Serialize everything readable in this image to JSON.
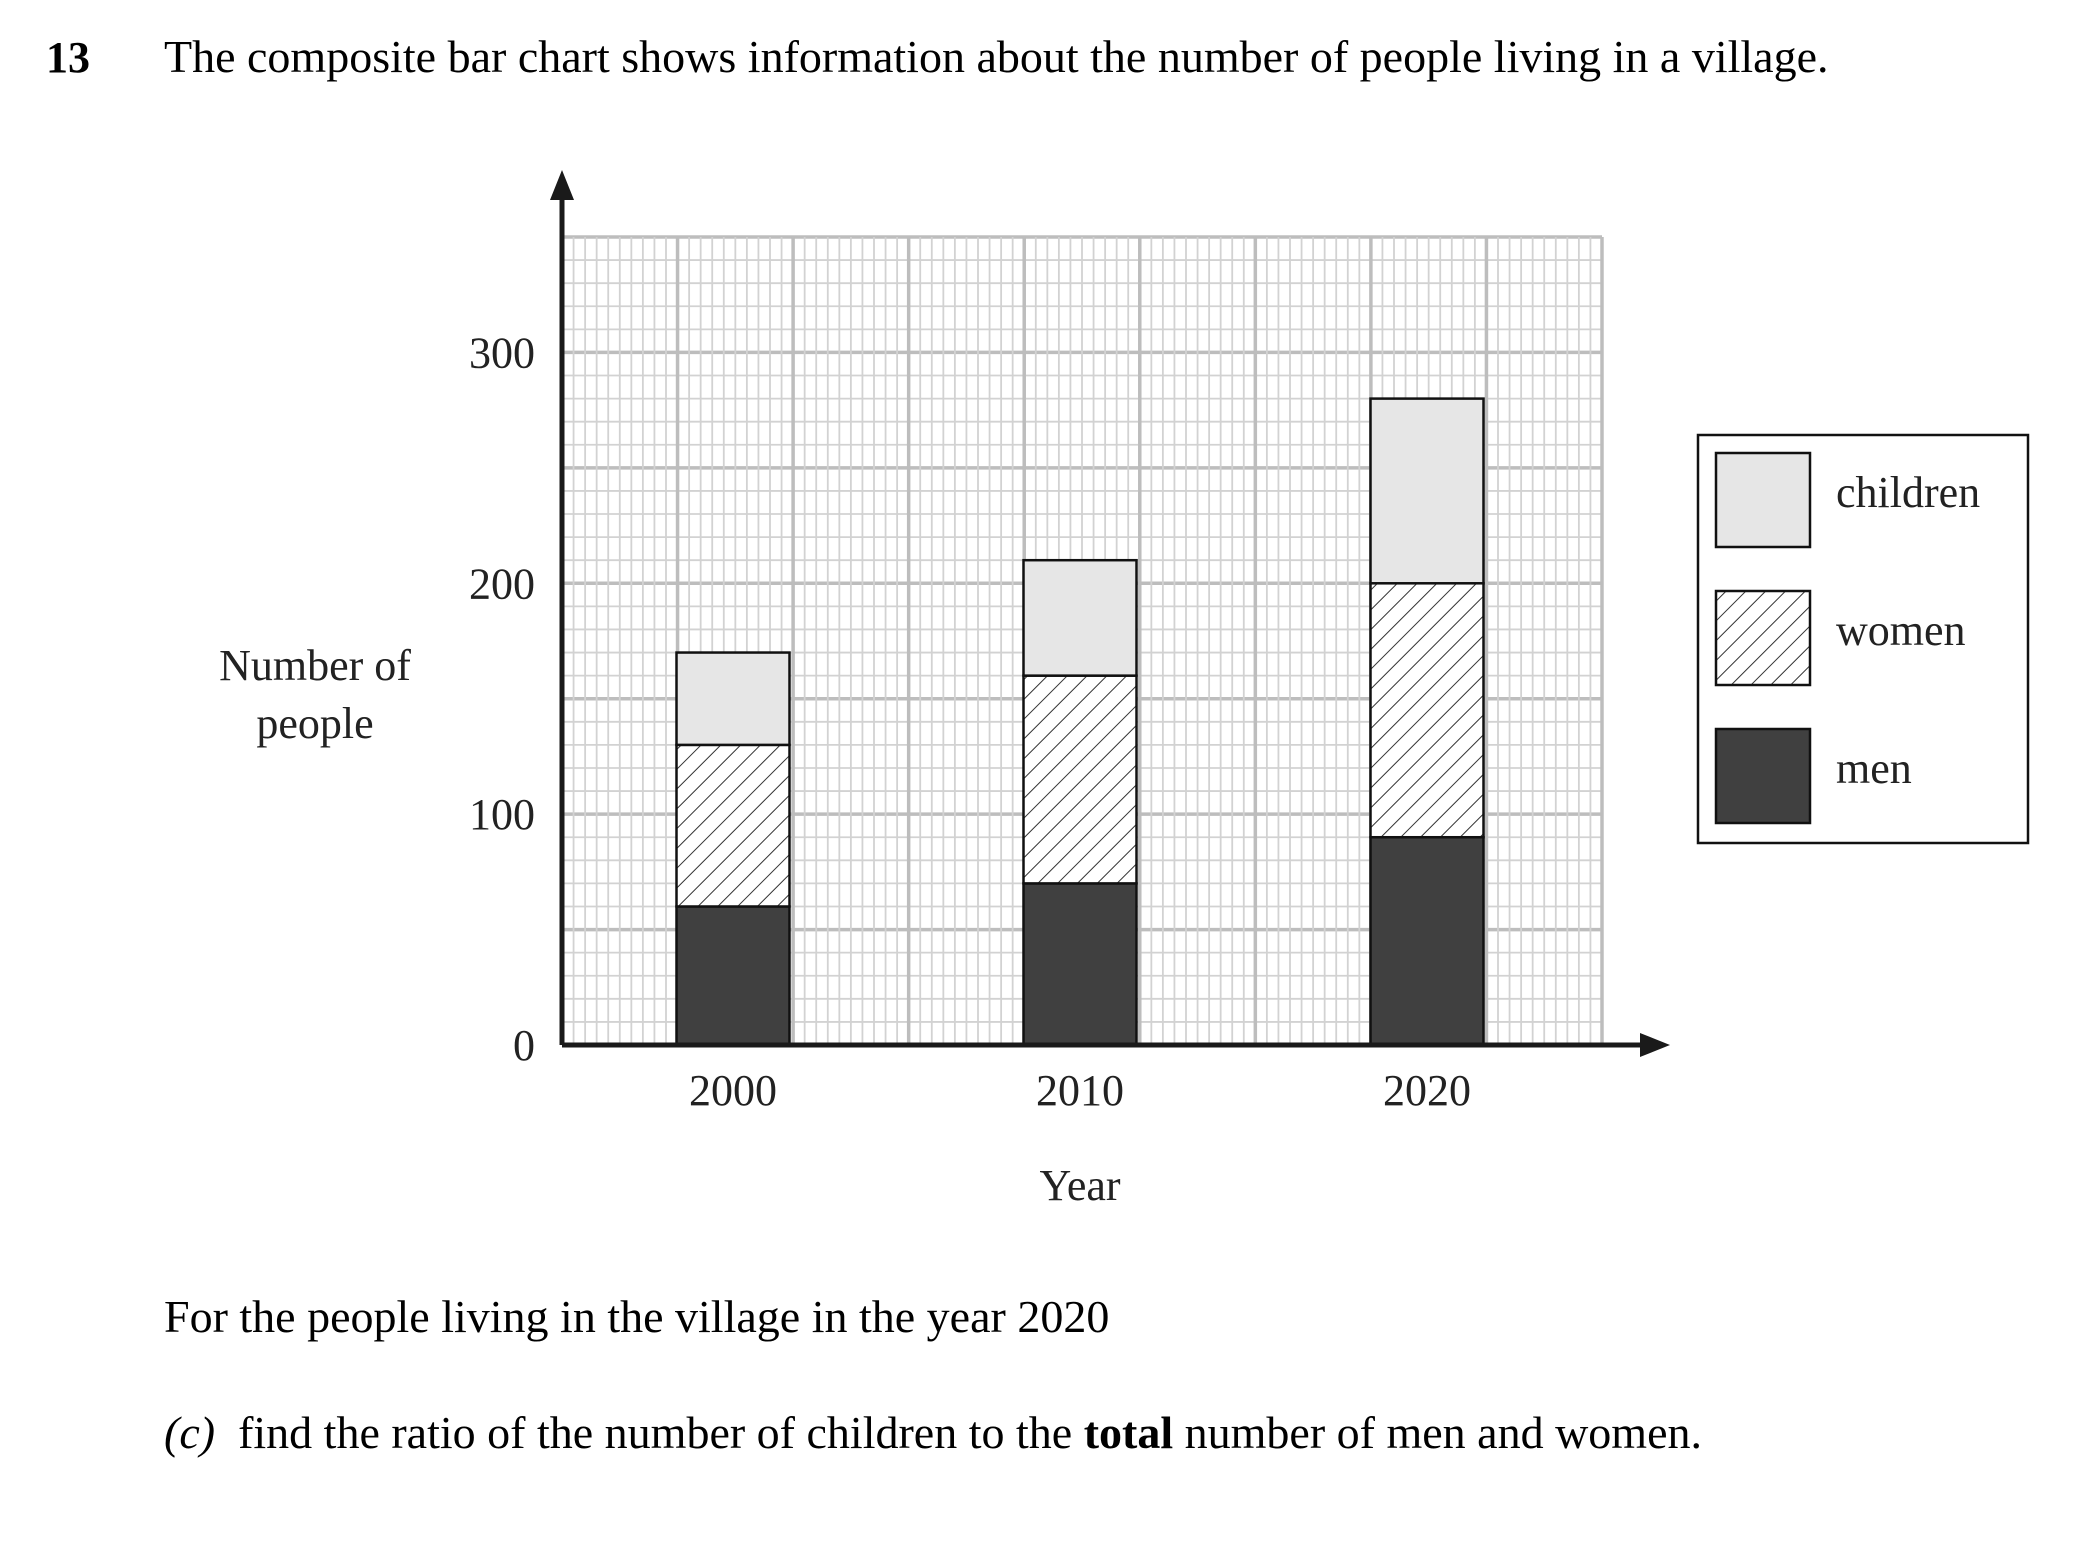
{
  "question": {
    "number": "13",
    "text": "The composite bar chart shows information about the number of people living in a village.",
    "intro": "For the people living in the village in the year 2020",
    "part_label": "(c)",
    "part_text_before": "find the ratio of the number of children to the",
    "part_text_bold": "total",
    "part_text_after": "number of men and women."
  },
  "chart_data": {
    "type": "bar",
    "stacked": true,
    "categories": [
      "2000",
      "2010",
      "2020"
    ],
    "series": [
      {
        "name": "men",
        "values": [
          60,
          70,
          90
        ],
        "color": "#404040",
        "pattern": "solid"
      },
      {
        "name": "women",
        "values": [
          70,
          90,
          110
        ],
        "color": "#ffffff",
        "pattern": "hatched"
      },
      {
        "name": "children",
        "values": [
          40,
          50,
          80
        ],
        "color": "#e6e6e6",
        "pattern": "solid"
      }
    ],
    "legend_order": [
      "children",
      "women",
      "men"
    ],
    "title": "",
    "xlabel": "Year",
    "ylabel_lines": [
      "Number of",
      "people"
    ],
    "ylim": [
      0,
      350
    ],
    "yticks": [
      0,
      100,
      200,
      300
    ],
    "grid": true,
    "legend_position": "right"
  }
}
